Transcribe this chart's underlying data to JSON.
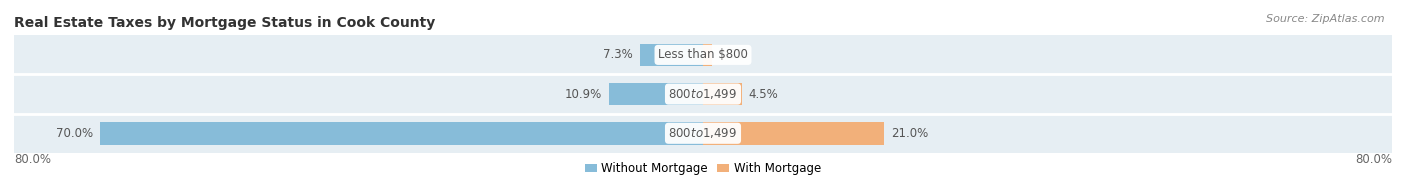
{
  "title": "Real Estate Taxes by Mortgage Status in Cook County",
  "source": "Source: ZipAtlas.com",
  "rows": [
    {
      "label": "Less than $800",
      "without_mortgage": 7.3,
      "with_mortgage": 1.0
    },
    {
      "label": "$800 to $1,499",
      "without_mortgage": 10.9,
      "with_mortgage": 4.5
    },
    {
      "label": "$800 to $1,499",
      "without_mortgage": 70.0,
      "with_mortgage": 21.0
    }
  ],
  "x_left_label": "80.0%",
  "x_right_label": "80.0%",
  "xlim_left": -80,
  "xlim_right": 80,
  "bar_height": 0.58,
  "color_without": "#87BCD9",
  "color_with": "#F2B07A",
  "color_row_bg_odd": "#E8EEF3",
  "color_row_bg_even": "#F0F4F7",
  "row_bg_color": "#E6EEF3",
  "legend_without": "Without Mortgage",
  "legend_with": "With Mortgage",
  "title_fontsize": 10,
  "source_fontsize": 8,
  "label_fontsize": 8.5,
  "tick_fontsize": 8.5,
  "label_pill_color": "#FFFFFF",
  "label_text_color": "#555555",
  "pct_text_color": "#555555"
}
